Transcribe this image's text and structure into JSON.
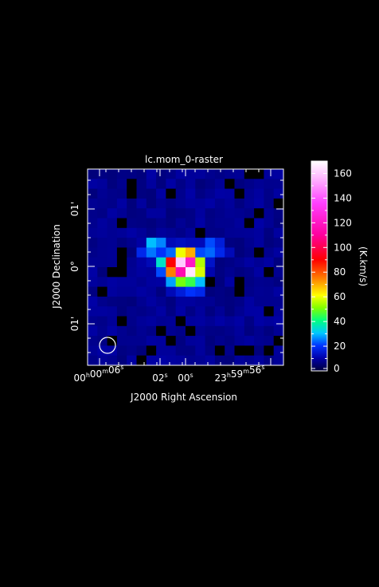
{
  "chart_data": {
    "type": "heatmap",
    "title": "lc.mom_0-raster",
    "xlabel": "J2000 Right Ascension",
    "ylabel": "J2000 Declination",
    "colorbar_label": "(K.km/s)",
    "colorbar_ticks": [
      "0",
      "20",
      "40",
      "60",
      "80",
      "100",
      "120",
      "140",
      "160"
    ],
    "colorbar_range": [
      0,
      170
    ],
    "x_tick_labels": [
      {
        "h": "00",
        "hu": "h",
        "m": "00",
        "mu": "m",
        "s": "06",
        "su": "s"
      },
      {
        "s": "02",
        "su": "s"
      },
      {
        "s": "00",
        "su": "s"
      },
      {
        "h": "23",
        "hu": "h",
        "m": "59",
        "mu": "m",
        "s": "56",
        "su": "s"
      }
    ],
    "y_tick_labels": [
      "01'",
      "0°",
      "01'"
    ],
    "grid_size": [
      20,
      20
    ],
    "background_level": 6,
    "peak_pixels": [
      {
        "col": 9,
        "row": 9,
        "value": 160
      },
      {
        "col": 10,
        "row": 9,
        "value": 120
      },
      {
        "col": 9,
        "row": 10,
        "value": 115
      },
      {
        "col": 10,
        "row": 10,
        "value": 165
      },
      {
        "col": 8,
        "row": 9,
        "value": 90
      },
      {
        "col": 8,
        "row": 10,
        "value": 75
      },
      {
        "col": 9,
        "row": 8,
        "value": 60
      },
      {
        "col": 11,
        "row": 9,
        "value": 55
      },
      {
        "col": 11,
        "row": 10,
        "value": 58
      },
      {
        "col": 10,
        "row": 8,
        "value": 70
      },
      {
        "col": 9,
        "row": 11,
        "value": 50
      },
      {
        "col": 10,
        "row": 11,
        "value": 45
      },
      {
        "col": 8,
        "row": 11,
        "value": 28
      },
      {
        "col": 11,
        "row": 11,
        "value": 30
      },
      {
        "col": 7,
        "row": 9,
        "value": 35
      },
      {
        "col": 7,
        "row": 10,
        "value": 22
      },
      {
        "col": 11,
        "row": 8,
        "value": 22
      },
      {
        "col": 8,
        "row": 8,
        "value": 24
      },
      {
        "col": 6,
        "row": 7,
        "value": 30
      },
      {
        "col": 7,
        "row": 7,
        "value": 26
      },
      {
        "col": 6,
        "row": 8,
        "value": 25
      },
      {
        "col": 7,
        "row": 8,
        "value": 20
      },
      {
        "col": 5,
        "row": 8,
        "value": 18
      },
      {
        "col": 12,
        "row": 7,
        "value": 22
      },
      {
        "col": 12,
        "row": 8,
        "value": 24
      },
      {
        "col": 13,
        "row": 7,
        "value": 16
      },
      {
        "col": 13,
        "row": 8,
        "value": 18
      },
      {
        "col": 10,
        "row": 12,
        "value": 20
      },
      {
        "col": 11,
        "row": 12,
        "value": 18
      },
      {
        "col": 9,
        "row": 12,
        "value": 16
      },
      {
        "col": 12,
        "row": 9,
        "value": 14
      },
      {
        "col": 8,
        "row": 12,
        "value": 12
      },
      {
        "col": 14,
        "row": 8,
        "value": 12
      },
      {
        "col": 9,
        "row": 7,
        "value": 13
      },
      {
        "col": 10,
        "row": 7,
        "value": 12
      },
      {
        "col": 8,
        "row": 7,
        "value": 12
      },
      {
        "col": 11,
        "row": 7,
        "value": 12
      },
      {
        "col": 6,
        "row": 9,
        "value": 12
      },
      {
        "col": 12,
        "row": 10,
        "value": 11
      },
      {
        "col": 12,
        "row": 11,
        "value": 10
      }
    ],
    "blank_pixels": [
      [
        4,
        1
      ],
      [
        4,
        2
      ],
      [
        8,
        2
      ],
      [
        14,
        1
      ],
      [
        16,
        0
      ],
      [
        17,
        0
      ],
      [
        15,
        2
      ],
      [
        19,
        3
      ],
      [
        17,
        4
      ],
      [
        3,
        5
      ],
      [
        16,
        5
      ],
      [
        11,
        6
      ],
      [
        3,
        8
      ],
      [
        17,
        8
      ],
      [
        3,
        9
      ],
      [
        2,
        10
      ],
      [
        3,
        10
      ],
      [
        18,
        10
      ],
      [
        15,
        11
      ],
      [
        12,
        11
      ],
      [
        1,
        12
      ],
      [
        15,
        12
      ],
      [
        18,
        14
      ],
      [
        3,
        15
      ],
      [
        9,
        15
      ],
      [
        7,
        16
      ],
      [
        2,
        17
      ],
      [
        10,
        16
      ],
      [
        6,
        18
      ],
      [
        8,
        17
      ],
      [
        13,
        18
      ],
      [
        15,
        18
      ],
      [
        16,
        18
      ],
      [
        18,
        18
      ],
      [
        19,
        17
      ],
      [
        5,
        19
      ]
    ]
  }
}
